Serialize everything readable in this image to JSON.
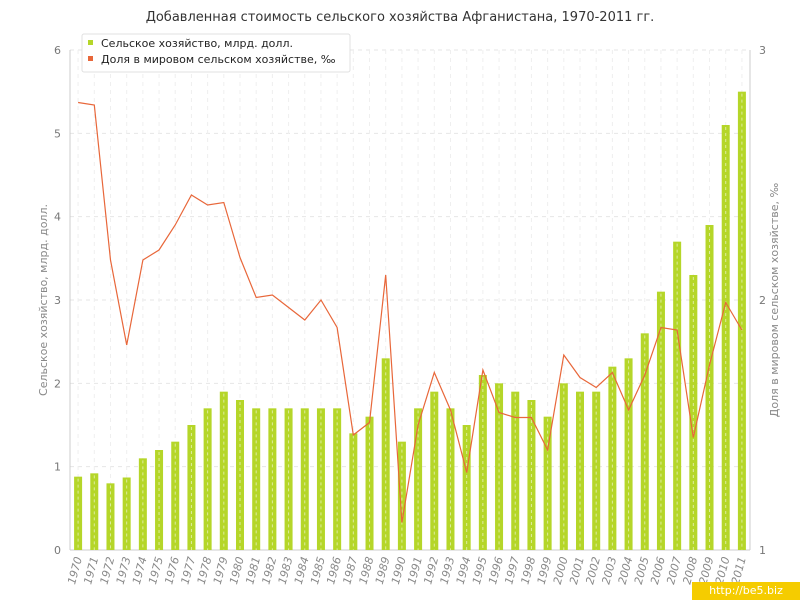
{
  "chart_data": {
    "type": "bar",
    "title": "Добавленная стоимость сельского хозяйства Афганистана, 1970-2011 гг.",
    "ylabel_left": "Сельское хозяйство, млрд. долл.",
    "ylabel_right": "Доля в мировом сельском хозяйстве, ‰",
    "ylim_left": [
      0,
      6
    ],
    "ylim_right": [
      1,
      3
    ],
    "yticks_left": [
      "0",
      "1",
      "2",
      "3",
      "4",
      "5",
      "6"
    ],
    "yticks_right": [
      "1",
      "2",
      "3"
    ],
    "legend_position": "top-left",
    "categories": [
      "1970",
      "1971",
      "1972",
      "1973",
      "1974",
      "1975",
      "1976",
      "1977",
      "1978",
      "1979",
      "1980",
      "1981",
      "1982",
      "1983",
      "1984",
      "1985",
      "1986",
      "1987",
      "1988",
      "1989",
      "1990",
      "1991",
      "1992",
      "1993",
      "1994",
      "1995",
      "1996",
      "1997",
      "1998",
      "1999",
      "2000",
      "2001",
      "2002",
      "2003",
      "2004",
      "2005",
      "2006",
      "2007",
      "2008",
      "2009",
      "2010",
      "2011"
    ],
    "series": [
      {
        "name": "Сельское хозяйство, млрд. долл.",
        "type": "bar",
        "axis": "left",
        "color": "#b5d629",
        "values": [
          0.88,
          0.92,
          0.8,
          0.87,
          1.1,
          1.2,
          1.3,
          1.5,
          1.7,
          1.9,
          1.8,
          1.7,
          1.7,
          1.7,
          1.7,
          1.7,
          1.7,
          1.4,
          1.6,
          2.3,
          1.3,
          1.7,
          1.9,
          1.7,
          1.5,
          2.1,
          2.0,
          1.9,
          1.8,
          1.6,
          2.0,
          1.9,
          1.9,
          2.2,
          2.3,
          2.6,
          3.1,
          3.7,
          3.3,
          3.9,
          5.1,
          5.5
        ]
      },
      {
        "name": "Доля в мировом сельском хозяйстве, ‰",
        "type": "line",
        "axis": "right",
        "color": "#e8673a",
        "values": [
          2.79,
          2.78,
          2.16,
          1.82,
          2.16,
          2.2,
          2.3,
          2.42,
          2.38,
          2.39,
          2.17,
          2.01,
          2.02,
          1.97,
          1.92,
          2.0,
          1.89,
          1.46,
          1.51,
          2.1,
          1.11,
          1.5,
          1.71,
          1.56,
          1.31,
          1.72,
          1.55,
          1.53,
          1.53,
          1.4,
          1.78,
          1.69,
          1.65,
          1.71,
          1.56,
          1.7,
          1.89,
          1.88,
          1.45,
          1.74,
          1.99,
          1.88
        ]
      }
    ]
  },
  "watermark": "http://be5.biz"
}
